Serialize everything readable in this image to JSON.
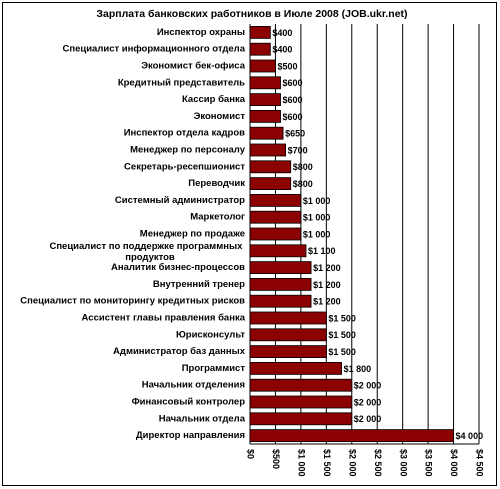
{
  "chart_data": {
    "type": "bar",
    "orientation": "horizontal",
    "title": "Зарплата банковских работников в Июле 2008 (JOB.ukr.net)",
    "categories": [
      "Инспектор охраны",
      "Специалист информационного отдела",
      "Экономист бек-офиса",
      "Кредитный представитель",
      "Кассир банка",
      "Экономист",
      "Инспектор отдела кадров",
      "Менеджер по персоналу",
      "Секретарь-ресепшионист",
      "Переводчик",
      "Системный администратор",
      "Маркетолог",
      "Менеджер по продаже",
      "Специалист по поддержке программных продуктов",
      "Аналитик бизнес-процессов",
      "Внутренний тренер",
      "Специалист по мониторингу кредитных рисков",
      "Ассистент главы правления банка",
      "Юрисконсульт",
      "Администратор баз данных",
      "Программист",
      "Начальник отделения",
      "Финансовый контролер",
      "Начальник отдела",
      "Директор направления"
    ],
    "values": [
      400,
      400,
      500,
      600,
      600,
      600,
      650,
      700,
      800,
      800,
      1000,
      1000,
      1000,
      1100,
      1200,
      1200,
      1200,
      1500,
      1500,
      1500,
      1800,
      2000,
      2000,
      2000,
      4000
    ],
    "value_labels": [
      "$400",
      "$400",
      "$500",
      "$600",
      "$600",
      "$600",
      "$650",
      "$700",
      "$800",
      "$800",
      "$1 000",
      "$1 000",
      "$1 000",
      "$1 100",
      "$1 200",
      "$1 200",
      "$1 200",
      "$1 500",
      "$1 500",
      "$1 500",
      "$1 800",
      "$2 000",
      "$2 000",
      "$2 000",
      "$4 000"
    ],
    "color": "#8b0000",
    "xlim": [
      0,
      4500
    ],
    "xticks": [
      {
        "value": 0,
        "label": "$0"
      },
      {
        "value": 500,
        "label": "$500"
      },
      {
        "value": 1000,
        "label": "$1 000"
      },
      {
        "value": 1500,
        "label": "$1 500"
      },
      {
        "value": 2000,
        "label": "$2 000"
      },
      {
        "value": 2500,
        "label": "$2 500"
      },
      {
        "value": 3000,
        "label": "$3 000"
      },
      {
        "value": 3500,
        "label": "$3 500"
      },
      {
        "value": 4000,
        "label": "$4 000"
      },
      {
        "value": 4500,
        "label": "$4 500"
      }
    ],
    "grid": true
  }
}
